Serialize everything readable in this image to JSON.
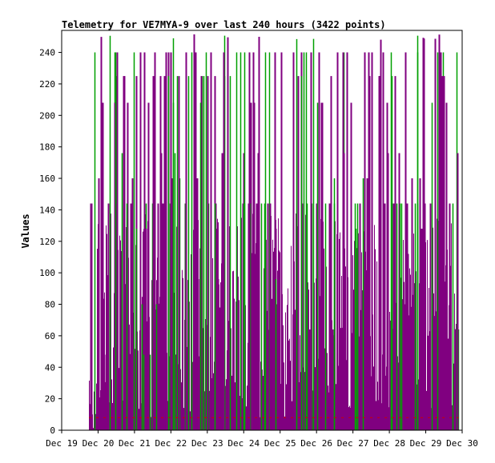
{
  "chart_data": {
    "type": "bar",
    "title": "Telemetry for VE7MYA-9 over last 240 hours (3422 points)",
    "xlabel": "",
    "ylabel": "Values",
    "ylim": [
      0,
      254
    ],
    "yticks": [
      0,
      20,
      40,
      60,
      80,
      100,
      120,
      140,
      160,
      180,
      200,
      220,
      240
    ],
    "xticks": [
      "Dec 19",
      "Dec 20",
      "Dec 21",
      "Dec 22",
      "Dec 23",
      "Dec 24",
      "Dec 25",
      "Dec 26",
      "Dec 27",
      "Dec 28",
      "Dec 29",
      "Dec 30"
    ],
    "x_range_days": [
      0,
      11
    ],
    "data_start_day": 0.75,
    "data_end_day": 10.9,
    "grid": false,
    "series": [
      {
        "color": "#00a000"
      },
      {
        "color": "#800080"
      },
      {
        "color": "#cc0000"
      }
    ],
    "baseline_value": 8
  }
}
